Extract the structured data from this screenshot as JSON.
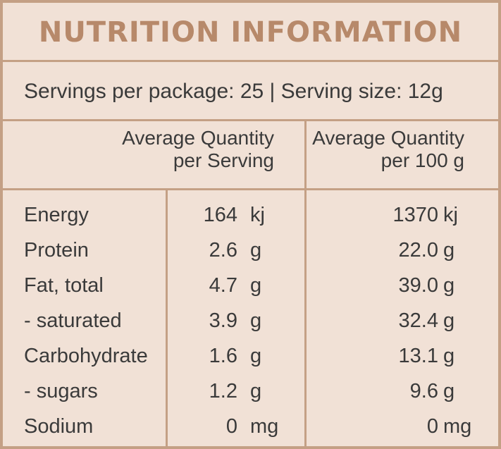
{
  "title": "NUTRITION INFORMATION",
  "servings_line": "Servings per package: 25 | Serving size: 12g",
  "headers": {
    "per_serving_line1": "Average Quantity",
    "per_serving_line2": "per Serving",
    "per_100g_line1": "Average Quantity",
    "per_100g_line2": "per 100 g"
  },
  "rows": [
    {
      "nutrient": "Energy",
      "serving_value": "164",
      "serving_unit": "kj",
      "per100_value": "1370",
      "per100_unit": "kj"
    },
    {
      "nutrient": "Protein",
      "serving_value": "2.6",
      "serving_unit": "g",
      "per100_value": "22.0",
      "per100_unit": "g"
    },
    {
      "nutrient": "Fat, total",
      "serving_value": "4.7",
      "serving_unit": "g",
      "per100_value": "39.0",
      "per100_unit": "g"
    },
    {
      "nutrient": "- saturated",
      "serving_value": "3.9",
      "serving_unit": "g",
      "per100_value": "32.4",
      "per100_unit": "g"
    },
    {
      "nutrient": "Carbohydrate",
      "serving_value": "1.6",
      "serving_unit": "g",
      "per100_value": "13.1",
      "per100_unit": "g"
    },
    {
      "nutrient": "- sugars",
      "serving_value": "1.2",
      "serving_unit": "g",
      "per100_value": "9.6",
      "per100_unit": "g"
    },
    {
      "nutrient": "Sodium",
      "serving_value": "0",
      "serving_unit": "mg",
      "per100_value": "0",
      "per100_unit": "mg"
    }
  ],
  "colors": {
    "background": "#f1e1d6",
    "border": "#c4a085",
    "title": "#b7896a",
    "text": "#3a3a3a"
  }
}
